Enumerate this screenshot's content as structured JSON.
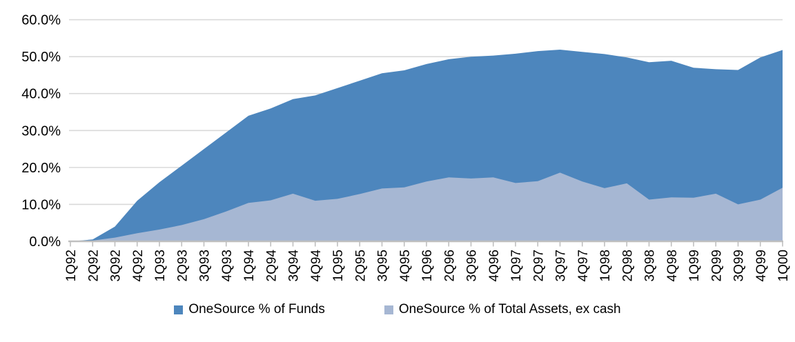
{
  "chart_data": {
    "type": "area",
    "title": "",
    "xlabel": "",
    "ylabel": "",
    "categories": [
      "1Q92",
      "2Q92",
      "3Q92",
      "4Q92",
      "1Q93",
      "2Q93",
      "3Q93",
      "4Q93",
      "1Q94",
      "2Q94",
      "3Q94",
      "4Q94",
      "1Q95",
      "2Q95",
      "3Q95",
      "4Q95",
      "1Q96",
      "2Q96",
      "3Q96",
      "4Q96",
      "1Q97",
      "2Q97",
      "3Q97",
      "4Q97",
      "1Q98",
      "2Q98",
      "3Q98",
      "4Q98",
      "1Q99",
      "2Q99",
      "3Q99",
      "4Q99",
      "1Q00"
    ],
    "series": [
      {
        "name": "OneSource % of Funds",
        "color": "#4d86bd",
        "values": [
          0.0,
          0.5,
          4.0,
          11.0,
          16.0,
          20.5,
          25.0,
          29.5,
          34.0,
          36.0,
          38.5,
          39.5,
          41.5,
          43.5,
          45.5,
          46.3,
          48.0,
          49.3,
          50.0,
          50.3,
          50.8,
          51.5,
          51.9,
          51.3,
          50.7,
          49.8,
          48.5,
          48.9,
          47.0,
          46.6,
          46.4,
          49.8,
          51.8
        ]
      },
      {
        "name": "OneSource % of Total Assets, ex cash",
        "color": "#a6b7d3",
        "values": [
          0.0,
          0.2,
          1.0,
          2.2,
          3.2,
          4.4,
          6.0,
          8.1,
          10.4,
          11.1,
          12.9,
          11.0,
          11.5,
          12.8,
          14.3,
          14.6,
          16.2,
          17.3,
          17.0,
          17.3,
          15.8,
          16.3,
          18.6,
          16.2,
          14.4,
          15.7,
          11.3,
          11.9,
          11.8,
          12.9,
          10.0,
          11.3,
          14.5
        ]
      }
    ],
    "ylim": [
      0,
      60
    ],
    "y_tick_values": [
      0,
      10,
      20,
      30,
      40,
      50,
      60
    ],
    "y_tick_labels": [
      "0.0%",
      "10.0%",
      "20.0%",
      "30.0%",
      "40.0%",
      "50.0%",
      "60.0%"
    ],
    "grid": "horizontal",
    "legend_position": "bottom",
    "overlap_mode": "layered-not-stacked"
  },
  "legend": {
    "funds_label": "OneSource % of Funds",
    "assets_label": "OneSource % of Total Assets, ex cash"
  },
  "style": {
    "funds_color": "#4d86bd",
    "assets_color": "#a6b7d3",
    "gridline_color": "#d9d9d9",
    "axis_color": "#bfbfbf",
    "text_color": "#000000",
    "background_color": "#ffffff"
  }
}
